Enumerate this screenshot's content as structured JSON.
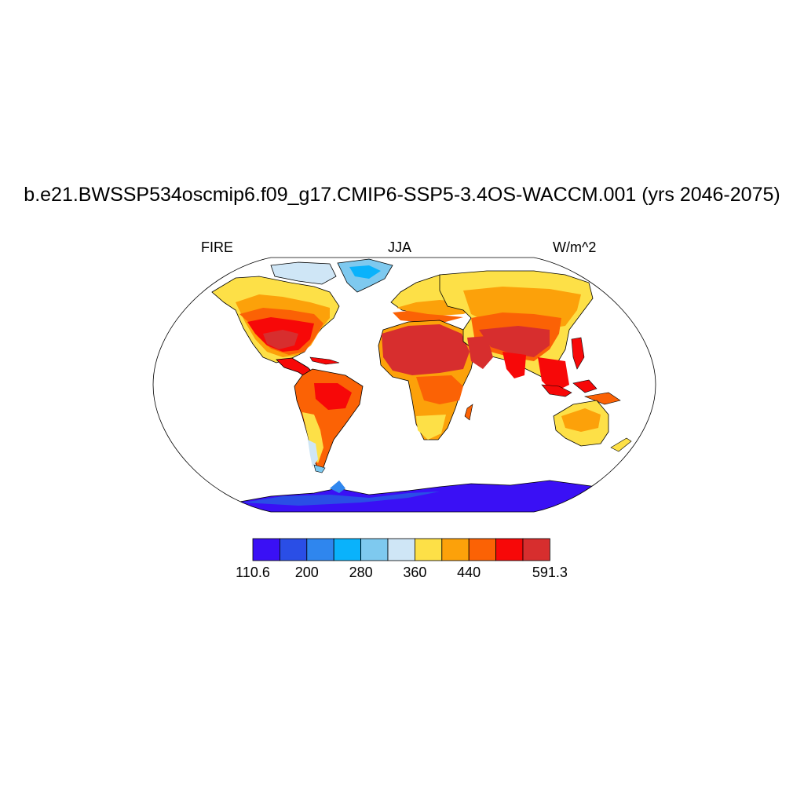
{
  "title": "b.e21.BWSSP534oscmip6.f09_g17.CMIP6-SSP5-3.4OS-WACCM.001 (yrs 2046-2075)",
  "subtitle_left": "FIRE",
  "subtitle_center": "JJA",
  "subtitle_right": "W/m^2",
  "colorbar": {
    "colors": [
      "#3a10f5",
      "#2a4ee6",
      "#2f86ee",
      "#0ab2fb",
      "#7ec9ef",
      "#cfe6f6",
      "#fde047",
      "#fca10a",
      "#fb6205",
      "#f70808",
      "#d72e2e"
    ],
    "labels": [
      "110.6",
      "200",
      "280",
      "360",
      "440",
      "591.3"
    ],
    "label_boundaries": [
      0,
      2,
      4,
      6,
      8,
      11
    ]
  },
  "colors": {
    "ocean": "#ffffff",
    "coastline": "#000000"
  }
}
